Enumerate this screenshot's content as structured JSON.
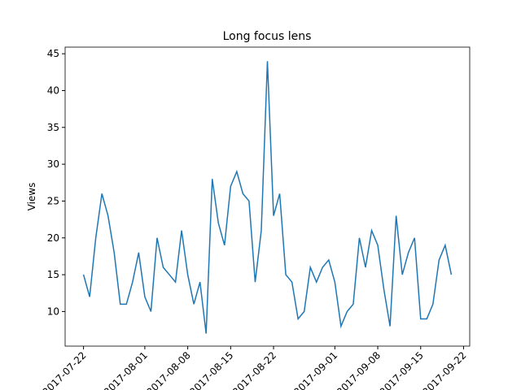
{
  "chart_data": {
    "type": "line",
    "title": "Long focus lens",
    "y_label": "Views",
    "x": [
      "2017-07-22",
      "2017-07-23",
      "2017-07-24",
      "2017-07-25",
      "2017-07-26",
      "2017-07-27",
      "2017-07-28",
      "2017-07-29",
      "2017-07-30",
      "2017-07-31",
      "2017-08-01",
      "2017-08-02",
      "2017-08-03",
      "2017-08-04",
      "2017-08-05",
      "2017-08-06",
      "2017-08-07",
      "2017-08-08",
      "2017-08-09",
      "2017-08-10",
      "2017-08-11",
      "2017-08-12",
      "2017-08-13",
      "2017-08-14",
      "2017-08-15",
      "2017-08-16",
      "2017-08-17",
      "2017-08-18",
      "2017-08-19",
      "2017-08-20",
      "2017-08-21",
      "2017-08-22",
      "2017-08-23",
      "2017-08-24",
      "2017-08-25",
      "2017-08-26",
      "2017-08-27",
      "2017-08-28",
      "2017-08-29",
      "2017-08-30",
      "2017-08-31",
      "2017-09-01",
      "2017-09-02",
      "2017-09-03",
      "2017-09-04",
      "2017-09-05",
      "2017-09-06",
      "2017-09-07",
      "2017-09-08",
      "2017-09-09",
      "2017-09-10",
      "2017-09-11",
      "2017-09-12",
      "2017-09-13",
      "2017-09-14",
      "2017-09-15",
      "2017-09-16",
      "2017-09-17",
      "2017-09-18",
      "2017-09-19",
      "2017-09-20"
    ],
    "series": [
      {
        "name": "Views",
        "color": "#1f77b4",
        "values": [
          15,
          12,
          20,
          26,
          23,
          18,
          11,
          11,
          14,
          18,
          12,
          10,
          20,
          16,
          15,
          14,
          21,
          15,
          11,
          14,
          7,
          28,
          22,
          19,
          27,
          29,
          26,
          25,
          14,
          21,
          44,
          23,
          26,
          15,
          14,
          9,
          10,
          16,
          14,
          16,
          17,
          14,
          8,
          10,
          11,
          20,
          16,
          21,
          19,
          13,
          8,
          23,
          15,
          18,
          20,
          9,
          9,
          11,
          17,
          19,
          15
        ]
      }
    ],
    "xlim": [
      "2017-07-19",
      "2017-09-23"
    ],
    "xticks": [
      "2017-07-22",
      "2017-08-01",
      "2017-08-08",
      "2017-08-15",
      "2017-08-22",
      "2017-09-01",
      "2017-09-08",
      "2017-09-15",
      "2017-09-22"
    ],
    "ylim": [
      5.3,
      45.9
    ],
    "yticks": [
      10,
      15,
      20,
      25,
      30,
      35,
      40,
      45
    ],
    "grid": false
  }
}
